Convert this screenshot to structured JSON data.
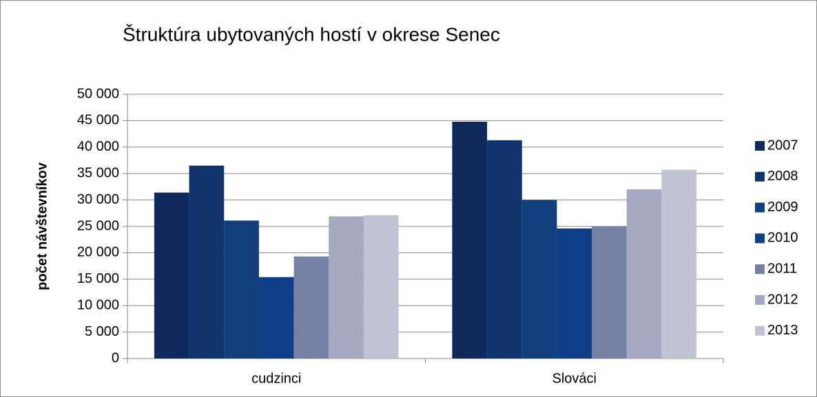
{
  "chart_data": {
    "type": "bar",
    "title": "Štruktúra ubytovaných hostí v okrese Senec",
    "y_label": "počet návštevníkov",
    "categories": [
      "cudzinci",
      "Slováci"
    ],
    "series": [
      {
        "name": "2007",
        "color": "#0d2a5a",
        "values": [
          31400,
          44800
        ]
      },
      {
        "name": "2008",
        "color": "#10346b",
        "values": [
          36500,
          41300
        ]
      },
      {
        "name": "2009",
        "color": "#123f7c",
        "values": [
          26100,
          30000
        ]
      },
      {
        "name": "2010",
        "color": "#0e3f86",
        "values": [
          15400,
          24600
        ]
      },
      {
        "name": "2011",
        "color": "#7480a4",
        "values": [
          19300,
          25000
        ]
      },
      {
        "name": "2012",
        "color": "#a3a9c0",
        "values": [
          26900,
          32000
        ]
      },
      {
        "name": "2013",
        "color": "#c0c3d3",
        "values": [
          27100,
          35700
        ]
      }
    ],
    "ylim": [
      0,
      50000
    ],
    "yticks": [
      0,
      {
        "value": 5000,
        "label": "5 000"
      },
      {
        "value": 10000,
        "label": "10 000"
      },
      {
        "value": 15000,
        "label": "15 000"
      },
      {
        "value": 20000,
        "label": "20 000"
      },
      {
        "value": 25000,
        "label": "25 000"
      },
      {
        "value": 30000,
        "label": "30 000"
      },
      {
        "value": 35000,
        "label": "35 000"
      },
      {
        "value": 40000,
        "label": "40 000"
      },
      {
        "value": 45000,
        "label": "45 000"
      },
      {
        "value": 50000,
        "label": "50 000"
      }
    ],
    "grid": true,
    "legend_position": "right"
  }
}
